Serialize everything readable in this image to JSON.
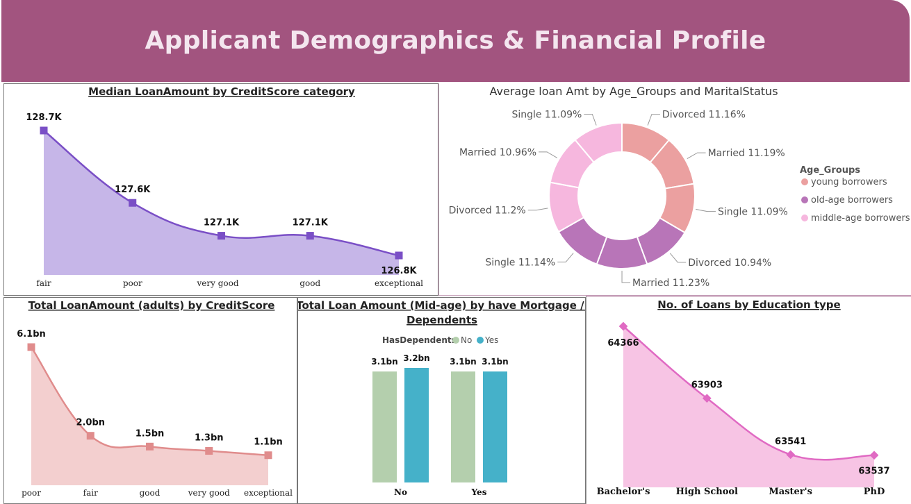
{
  "header": {
    "title": "Applicant Demographics & Financial Profile"
  },
  "colors": {
    "banner": "#a2547f",
    "purple_line": "#7a4fc6",
    "purple_fill": "#c6b6e8",
    "salmon_line": "#e08c8c",
    "salmon_fill": "#f3cfcf",
    "pink_line": "#e06ac3",
    "pink_fill": "#f7c4e4",
    "green_bar": "#b4cfad",
    "teal_bar": "#45b1c9",
    "young": "#eba0a0",
    "old_age": "#b875b8",
    "middle_age": "#f6b7de"
  },
  "chart_data": [
    {
      "type": "area",
      "title": "Median LoanAmount by CreditScore category",
      "categories": [
        "fair",
        "poor",
        "very good",
        "good",
        "exceptional"
      ],
      "values": [
        128.7,
        127.6,
        127.1,
        127.1,
        126.8
      ],
      "data_labels": [
        "128.7K",
        "127.6K",
        "127.1K",
        "127.1K",
        "126.8K"
      ],
      "unit": "K",
      "ylim": [
        126.8,
        128.7
      ]
    },
    {
      "type": "pie",
      "title": "Average loan Amt by Age_Groups and MaritalStatus",
      "legend_title": "Age_Groups",
      "legend": [
        "young borrowers",
        "old-age borrowers",
        "middle-age borrowers"
      ],
      "legend_position": "right",
      "slices": [
        {
          "group": "young borrowers",
          "label": "Divorced",
          "value": 11.16,
          "text": "Divorced 11.16%"
        },
        {
          "group": "young borrowers",
          "label": "Married",
          "value": 11.19,
          "text": "Married 11.19%"
        },
        {
          "group": "young borrowers",
          "label": "Single",
          "value": 11.09,
          "text": "Single 11.09%"
        },
        {
          "group": "old-age borrowers",
          "label": "Divorced",
          "value": 10.94,
          "text": "Divorced 10.94%"
        },
        {
          "group": "old-age borrowers",
          "label": "Married",
          "value": 11.23,
          "text": "Married 11.23%"
        },
        {
          "group": "old-age borrowers",
          "label": "Single",
          "value": 11.14,
          "text": "Single 11.14%"
        },
        {
          "group": "middle-age borrowers",
          "label": "Divorced",
          "value": 11.2,
          "text": "Divorced 11.2%"
        },
        {
          "group": "middle-age borrowers",
          "label": "Married",
          "value": 10.96,
          "text": "Married 10.96%"
        },
        {
          "group": "middle-age borrowers",
          "label": "Single",
          "value": 11.09,
          "text": "Single 11.09%"
        }
      ]
    },
    {
      "type": "area",
      "title": "Total LoanAmount (adults) by CreditScore",
      "categories": [
        "poor",
        "fair",
        "good",
        "very good",
        "exceptional"
      ],
      "values": [
        6.1,
        2.0,
        1.5,
        1.3,
        1.1
      ],
      "data_labels": [
        "6.1bn",
        "2.0bn",
        "1.5bn",
        "1.3bn",
        "1.1bn"
      ],
      "unit": "bn",
      "ylim": [
        0,
        6.1
      ]
    },
    {
      "type": "bar",
      "title": "Total Loan Amount (Mid-age) by have Mortgage / Dependents",
      "legend_title": "HasDependents",
      "legend_position": "top",
      "categories": [
        "No",
        "Yes"
      ],
      "series": [
        {
          "name": "No",
          "values": [
            3.1,
            3.1
          ],
          "labels": [
            "3.1bn",
            "3.1bn"
          ]
        },
        {
          "name": "Yes",
          "values": [
            3.2,
            3.1
          ],
          "labels": [
            "3.2bn",
            "3.1bn"
          ]
        }
      ],
      "unit": "bn"
    },
    {
      "type": "area",
      "title": "No. of Loans by Education type",
      "categories": [
        "Bachelor's",
        "High School",
        "Master's",
        "PhD"
      ],
      "values": [
        64366,
        63903,
        63541,
        63537
      ],
      "data_labels": [
        "64366",
        "63903",
        "63541",
        "63537"
      ],
      "ylim": [
        63500,
        64366
      ]
    }
  ]
}
